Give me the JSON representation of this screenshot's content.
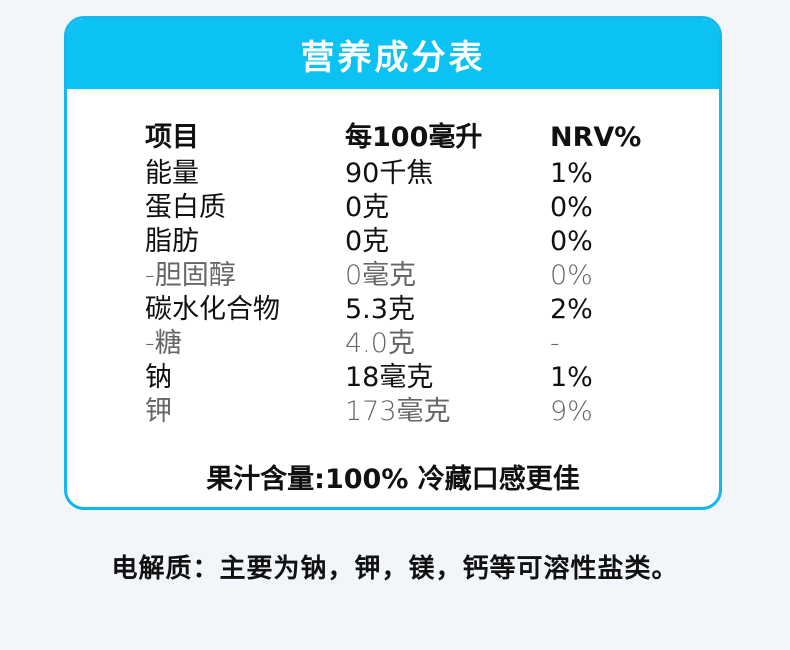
{
  "panel": {
    "title": "营养成分表"
  },
  "table": {
    "headers": [
      "项目",
      "每100毫升",
      "NRV%"
    ],
    "rows": [
      {
        "name": "能量",
        "value": "90千焦",
        "nrv": "1%",
        "style": "normal"
      },
      {
        "name": "蛋白质",
        "value": "0克",
        "nrv": "0%",
        "style": "normal"
      },
      {
        "name": "脂肪",
        "value": "0克",
        "nrv": "0%",
        "style": "normal"
      },
      {
        "name": "-胆固醇",
        "value": "0毫克",
        "nrv": "0%",
        "style": "light"
      },
      {
        "name": "碳水化合物",
        "value": "5.3克",
        "nrv": "2%",
        "style": "normal"
      },
      {
        "name": "-糖",
        "value": "4.0克",
        "nrv": "-",
        "style": "light"
      },
      {
        "name": "钠",
        "value": "18毫克",
        "nrv": "1%",
        "style": "normal"
      },
      {
        "name": "钾",
        "value": "173毫克",
        "nrv": "9%",
        "style": "light"
      }
    ]
  },
  "footer": {
    "text": "果汁含量:100% 冷藏口感更佳"
  },
  "note": {
    "text": "电解质：主要为钠，钾，镁，钙等可溶性盐类。"
  },
  "colors": {
    "accent": "#0bc2f2",
    "border": "#11b7ee",
    "background": "#f2f5f9"
  }
}
